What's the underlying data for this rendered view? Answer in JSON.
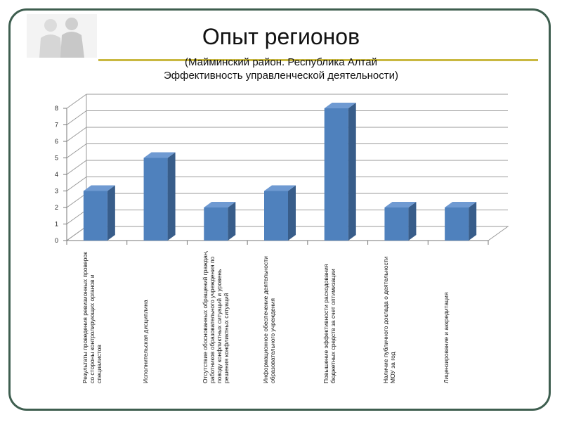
{
  "title": "Опыт регионов",
  "subtitle_line1": "(Майминский район. Республика Алтай",
  "subtitle_line2": "Эффективность управленческой деятельности)",
  "colors": {
    "bar_front": "#4f81bd",
    "bar_side": "#385d8a",
    "bar_top": "#6f9ad2",
    "frame": "#3e5e4f",
    "accent_line": "#c9b840"
  },
  "chart_data": {
    "type": "bar",
    "title": "",
    "xlabel": "",
    "ylabel": "",
    "ylim": [
      0,
      8
    ],
    "yticks": [
      "0",
      "1",
      "2",
      "3",
      "4",
      "5",
      "6",
      "7",
      "8"
    ],
    "grid": true,
    "categories": [
      "Результаты проведения ревизионных проверок со стороны контролирующих органов и специалистов",
      "Исполнительская дисциплина",
      "Отсутствие обоснованных обращений граждан, работников образовательного учреждения по поводу конфликтных ситуаций и уровень решения конфликтных ситуаций",
      "Информационное обеспечение деятельности образовательного учреждения",
      "Повышение эффективности расходования бюджетных средств за счет оптимизации",
      "Наличие публичного доклада о деятельности МОУ за год",
      "Лицензирование и аккредитация"
    ],
    "values": [
      3,
      5,
      2,
      3,
      8,
      2,
      2
    ]
  }
}
